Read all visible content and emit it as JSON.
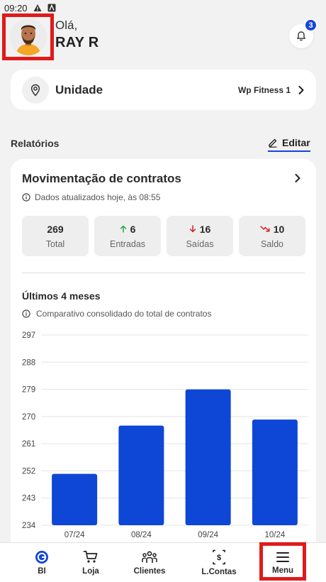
{
  "status_bar": {
    "time": "09:20"
  },
  "header": {
    "greeting": "Olá,",
    "username": "RAY R",
    "notification_count": "3"
  },
  "unit": {
    "label": "Unidade",
    "value": "Wp Fitness 1"
  },
  "reports": {
    "section_title": "Relatórios",
    "edit_label": "Editar"
  },
  "report_card": {
    "title": "Movimentação de contratos",
    "updated_text": "Dados atualizados hoje, às 08:55",
    "stats": [
      {
        "value": "269",
        "label": "Total"
      },
      {
        "value": "6",
        "label": "Entradas"
      },
      {
        "value": "16",
        "label": "Saídas"
      },
      {
        "value": "10",
        "label": "Saldo"
      }
    ],
    "chart_title": "Últimos 4 meses",
    "chart_subtitle": "Comparativo consolidado do total de contratos"
  },
  "chart_data": {
    "type": "bar",
    "categories": [
      "07/24",
      "08/24",
      "09/24",
      "10/24"
    ],
    "values": [
      251,
      267,
      279,
      269
    ],
    "ylim": [
      234,
      297
    ],
    "yticks": [
      234,
      243,
      252,
      261,
      270,
      279,
      288,
      297
    ],
    "grid": true,
    "color": "#0e46d6"
  },
  "bottom_nav": [
    {
      "label": "BI",
      "icon": "bi-logo-icon"
    },
    {
      "label": "Loja",
      "icon": "cart-icon"
    },
    {
      "label": "Clientes",
      "icon": "people-icon"
    },
    {
      "label": "L.Contas",
      "icon": "accounts-icon"
    },
    {
      "label": "Menu",
      "icon": "menu-icon"
    }
  ],
  "colors": {
    "accent": "#1446d8",
    "highlight": "#e01a1a",
    "up": "#1faa4a",
    "down": "#d32020"
  }
}
